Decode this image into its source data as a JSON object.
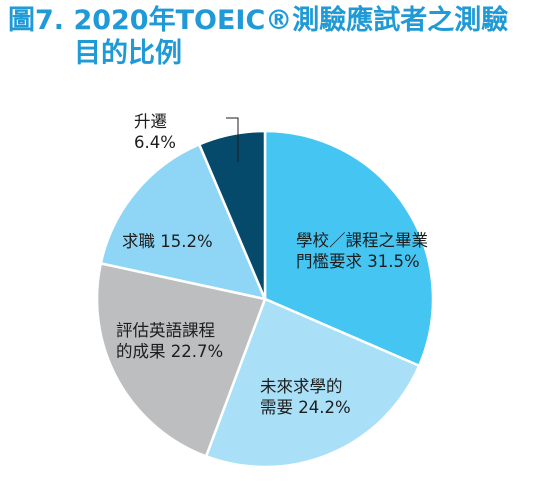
{
  "chart_data": {
    "type": "pie",
    "title_line1": "圖7. 2020年TOEIC®測驗應試者之測驗",
    "title_line2": "目的比例",
    "start_angle_deg": 0,
    "direction": "clockwise",
    "slices": [
      {
        "label_lines": [
          "學校／課程之畢業",
          "門檻要求 31.5%"
        ],
        "value": 31.5,
        "color": "#45c6f2"
      },
      {
        "label_lines": [
          "未來求學的",
          "需要 24.2%"
        ],
        "value": 24.2,
        "color": "#a9e0f7"
      },
      {
        "label_lines": [
          "評估英語課程",
          "的成果 22.7%"
        ],
        "value": 22.7,
        "color": "#bcbec0"
      },
      {
        "label_lines": [
          "求職 15.2%"
        ],
        "value": 15.2,
        "color": "#8fd6f6"
      },
      {
        "label_lines": [
          "升遷",
          "6.4%"
        ],
        "value": 6.4,
        "color": "#054a6b"
      }
    ]
  }
}
